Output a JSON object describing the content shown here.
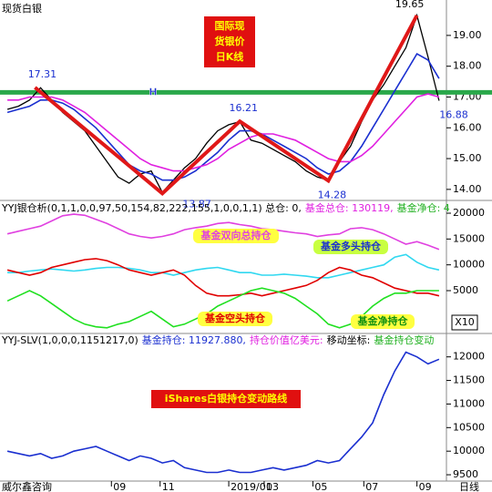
{
  "chart_data": [
    {
      "type": "line",
      "title": "现货白银",
      "annotation_lines": [
        "国际现",
        "货银价",
        "日K线"
      ],
      "x": [
        0,
        1,
        2,
        3,
        4,
        5,
        6,
        7,
        8,
        9,
        10,
        11,
        12,
        13,
        14,
        15,
        16,
        17,
        18,
        19,
        20,
        21,
        22,
        23,
        24,
        25,
        26,
        27,
        28,
        29,
        30,
        31,
        32,
        33,
        34,
        35,
        36,
        37,
        38,
        39
      ],
      "xlim": [
        -0.5,
        39.5
      ],
      "ylim": [
        13.7,
        20.15
      ],
      "yticks": [
        {
          "value": 14,
          "label": "14.00"
        },
        {
          "value": 15,
          "label": "15.00"
        },
        {
          "value": 16,
          "label": "16.00"
        },
        {
          "value": 17,
          "label": "17.00"
        },
        {
          "value": 18,
          "label": "18.00"
        },
        {
          "value": 19,
          "label": "19.00"
        }
      ],
      "hline": {
        "value": 17.15,
        "label": "H",
        "color": "#2aa84a"
      },
      "series": [
        {
          "color": "#000000",
          "values": [
            16.6,
            16.7,
            16.9,
            17.3,
            16.9,
            16.5,
            16.2,
            15.9,
            15.4,
            14.9,
            14.4,
            14.2,
            14.5,
            14.6,
            13.9,
            14.3,
            14.7,
            15.0,
            15.5,
            15.9,
            16.1,
            16.2,
            15.6,
            15.5,
            15.3,
            15.1,
            14.9,
            14.6,
            14.4,
            14.3,
            14.9,
            15.4,
            16.2,
            16.9,
            17.4,
            18.0,
            18.6,
            19.65,
            18.3,
            16.88
          ]
        },
        {
          "color": "#1a2fd0",
          "values": [
            16.5,
            16.6,
            16.7,
            16.9,
            16.9,
            16.8,
            16.6,
            16.3,
            16.0,
            15.6,
            15.2,
            14.8,
            14.6,
            14.5,
            14.3,
            14.3,
            14.4,
            14.6,
            14.9,
            15.2,
            15.6,
            15.9,
            15.9,
            15.8,
            15.6,
            15.4,
            15.2,
            15.0,
            14.7,
            14.5,
            14.6,
            14.9,
            15.4,
            16.0,
            16.6,
            17.2,
            17.8,
            18.4,
            18.2,
            17.6
          ]
        },
        {
          "color": "#e020e0",
          "values": [
            16.9,
            16.9,
            17.0,
            17.0,
            17.0,
            16.9,
            16.7,
            16.5,
            16.2,
            15.9,
            15.6,
            15.3,
            15.0,
            14.8,
            14.7,
            14.6,
            14.6,
            14.7,
            14.8,
            15.0,
            15.3,
            15.5,
            15.7,
            15.8,
            15.8,
            15.7,
            15.6,
            15.4,
            15.2,
            15.0,
            14.9,
            14.9,
            15.1,
            15.4,
            15.8,
            16.2,
            16.6,
            17.0,
            17.1,
            17.0
          ]
        },
        {
          "color": "#e01818",
          "x": [
            2.5,
            14,
            21,
            29,
            37
          ],
          "values": [
            17.31,
            13.87,
            16.21,
            14.28,
            19.65
          ]
        }
      ]
    },
    {
      "type": "line",
      "header": [
        {
          "text": "YYJ银仓析(0,1,1,0,0,97,50,154,82,222,155,1,0,0,1,1) 总仓: 0,",
          "color": "#000000"
        },
        {
          "text": "基金总仓: 130119,",
          "color": "#e020e0"
        },
        {
          "text": "基金净仓: 4",
          "color": "#20b020"
        }
      ],
      "unit": "X10",
      "x": [
        0,
        1,
        2,
        3,
        4,
        5,
        6,
        7,
        8,
        9,
        10,
        11,
        12,
        13,
        14,
        15,
        16,
        17,
        18,
        19,
        20,
        21,
        22,
        23,
        24,
        25,
        26,
        27,
        28,
        29,
        30,
        31,
        32,
        33,
        34,
        35,
        36,
        37,
        38,
        39
      ],
      "xlim": [
        -0.5,
        39.5
      ],
      "ylim": [
        -3117,
        22118
      ],
      "yticks": [
        5000,
        10000,
        15000,
        20000
      ],
      "series": [
        {
          "name": "基金双向总持仓",
          "color": "#e040e0",
          "values": [
            16000,
            16500,
            17000,
            17500,
            18500,
            19500,
            19800,
            19600,
            18800,
            18000,
            17000,
            16000,
            15500,
            15200,
            15500,
            16000,
            16800,
            17200,
            17500,
            18000,
            18200,
            17800,
            17500,
            17000,
            16800,
            16500,
            16200,
            16000,
            15500,
            15800,
            16000,
            17000,
            17200,
            16800,
            16000,
            15000,
            14000,
            14500,
            13800,
            13000
          ]
        },
        {
          "name": "基金多头持仓",
          "color": "#30d8f0",
          "values": [
            8500,
            8500,
            8800,
            9000,
            9200,
            9000,
            8800,
            9000,
            9300,
            9500,
            9500,
            9300,
            9000,
            8500,
            8500,
            8000,
            8500,
            9000,
            9300,
            9500,
            9000,
            8500,
            8500,
            8000,
            8000,
            8200,
            8000,
            7800,
            7500,
            7500,
            8000,
            8500,
            9000,
            9500,
            10000,
            11500,
            12000,
            10500,
            9500,
            9000
          ]
        },
        {
          "name": "基金空头持仓",
          "color": "#e00000",
          "values": [
            9000,
            8500,
            8000,
            8500,
            9500,
            10000,
            10500,
            11000,
            11200,
            10800,
            10000,
            9000,
            8500,
            8000,
            8500,
            9000,
            8000,
            6000,
            4500,
            4000,
            4000,
            4200,
            4500,
            4000,
            4500,
            5000,
            5500,
            6000,
            7000,
            8500,
            9500,
            9000,
            8000,
            7500,
            6500,
            5500,
            5000,
            4500,
            4500,
            4000
          ]
        },
        {
          "name": "基金净持仓",
          "color": "#20e020",
          "values": [
            3000,
            4000,
            5000,
            4000,
            2500,
            1000,
            -500,
            -1500,
            -2000,
            -2200,
            -1500,
            -1000,
            0,
            1000,
            -500,
            -2000,
            -1500,
            -500,
            500,
            2000,
            3000,
            4000,
            5000,
            5500,
            5000,
            4500,
            3500,
            2000,
            500,
            -1500,
            -2200,
            -1500,
            0,
            2000,
            3500,
            4500,
            4500,
            5000,
            5000,
            5000
          ]
        }
      ]
    },
    {
      "type": "line",
      "header": [
        {
          "text": "YYJ-SLV(1,0,0,0,1151217,0)",
          "color": "#000000"
        },
        {
          "text": "基金持仓: 11927.880,",
          "color": "#1a2fd0"
        },
        {
          "text": "持仓价值亿美元:",
          "color": "#e020e0"
        },
        {
          "text": "移动坐标:",
          "color": "#000000"
        },
        {
          "text": "基金持仓变动",
          "color": "#20b020"
        }
      ],
      "annotation": "iShares白银持仓变动路线",
      "source": "威尔鑫咨询",
      "period": "日线",
      "x": [
        0,
        1,
        2,
        3,
        4,
        5,
        6,
        7,
        8,
        9,
        10,
        11,
        12,
        13,
        14,
        15,
        16,
        17,
        18,
        19,
        20,
        21,
        22,
        23,
        24,
        25,
        26,
        27,
        28,
        29,
        30,
        31,
        32,
        33,
        34,
        35,
        36,
        37,
        38,
        39
      ],
      "xlim": [
        -0.5,
        39.5
      ],
      "ylim": [
        9366,
        12477
      ],
      "yticks": [
        9500,
        10000,
        10500,
        11000,
        11500,
        12000
      ],
      "xticks": [
        {
          "value": 9.4,
          "label": "09"
        },
        {
          "value": 13.8,
          "label": "11"
        },
        {
          "value": 20,
          "label": "2019/01"
        },
        {
          "value": 23.2,
          "label": "03"
        },
        {
          "value": 27.6,
          "label": "05"
        },
        {
          "value": 32.2,
          "label": "07"
        },
        {
          "value": 37,
          "label": "09"
        }
      ],
      "series": [
        {
          "color": "#1a2fd0",
          "values": [
            10000,
            9950,
            9900,
            9950,
            9850,
            9900,
            10000,
            10050,
            10100,
            10000,
            9900,
            9800,
            9900,
            9850,
            9750,
            9800,
            9650,
            9600,
            9550,
            9550,
            9600,
            9550,
            9550,
            9600,
            9650,
            9600,
            9650,
            9700,
            9800,
            9750,
            9800,
            10050,
            10300,
            10600,
            11200,
            11700,
            12100,
            12000,
            11850,
            11950
          ]
        }
      ]
    }
  ]
}
